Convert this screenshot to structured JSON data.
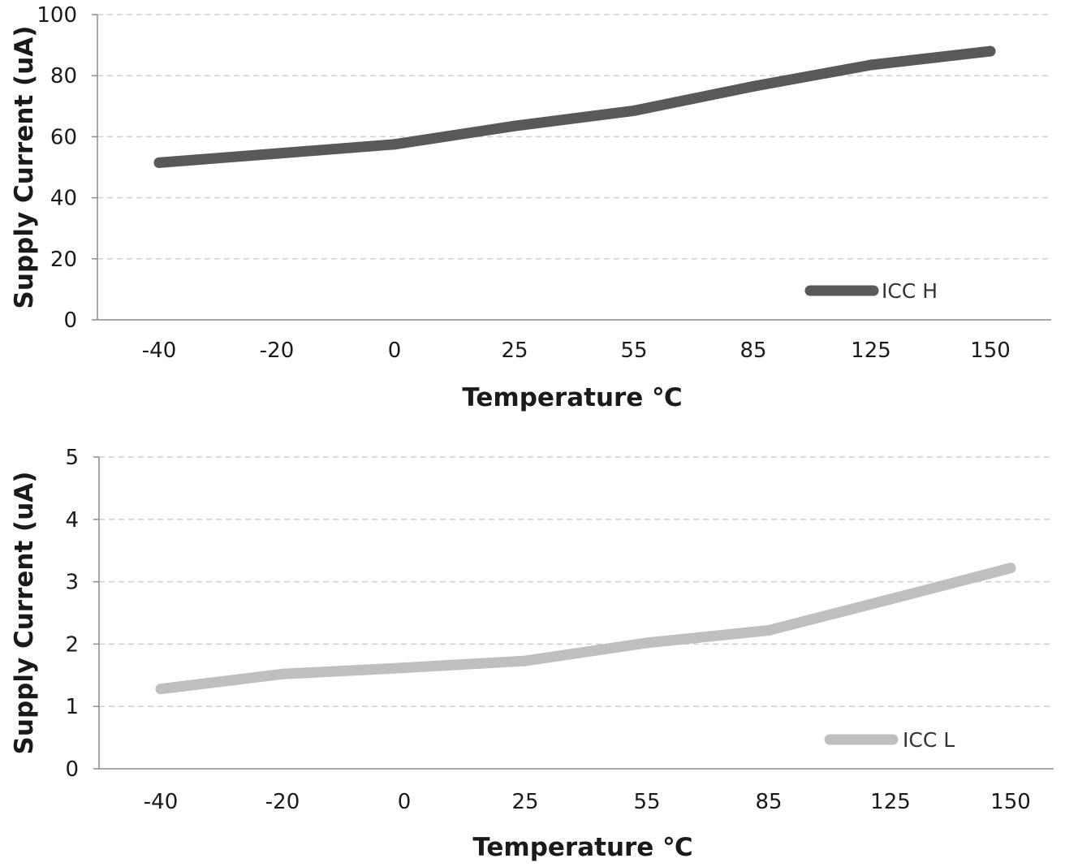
{
  "chart_data": [
    {
      "type": "line",
      "categories": [
        "-40",
        "-20",
        "0",
        "25",
        "55",
        "85",
        "125",
        "150"
      ],
      "series": [
        {
          "name": "ICC H",
          "values": [
            51.5,
            54.5,
            57.5,
            63.5,
            68.5,
            76.5,
            83.5,
            88
          ],
          "color": "#595959"
        }
      ],
      "xlabel": "Temperature ℃",
      "ylabel": "Supply Current (uA)",
      "ylim": [
        0,
        100
      ],
      "yticks": [
        0,
        20,
        40,
        60,
        80,
        100
      ],
      "grid": "horizontal dashed",
      "legend_position": "bottom-right"
    },
    {
      "type": "line",
      "categories": [
        "-40",
        "-20",
        "0",
        "25",
        "55",
        "85",
        "125",
        "150"
      ],
      "series": [
        {
          "name": "ICC L",
          "values": [
            1.28,
            1.52,
            1.62,
            1.73,
            2.02,
            2.22,
            2.72,
            3.22
          ],
          "color": "#bfbfbf"
        }
      ],
      "xlabel": "Temperature ℃",
      "ylabel": "Supply Current (uA)",
      "ylim": [
        0,
        5
      ],
      "yticks": [
        0,
        1,
        2,
        3,
        4,
        5
      ],
      "grid": "horizontal dashed",
      "legend_position": "bottom-right"
    }
  ]
}
